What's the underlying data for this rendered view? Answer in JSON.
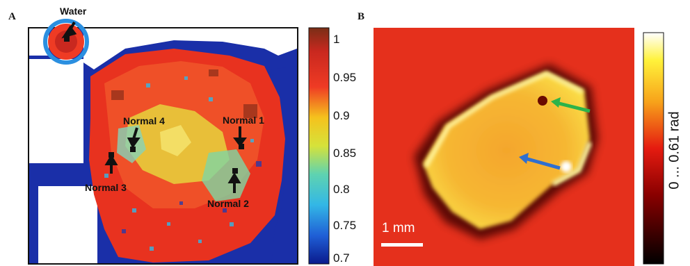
{
  "panel_a": {
    "letter": "A",
    "labels": {
      "water": "Water",
      "normal1": "Normal 1",
      "normal2": "Normal 2",
      "normal3": "Normal 3",
      "normal4": "Normal 4"
    },
    "colorbar": {
      "ticks": [
        "1",
        "0.95",
        "0.9",
        "0.85",
        "0.8",
        "0.75",
        "0.7"
      ],
      "tick_values": [
        1,
        0.95,
        0.9,
        0.85,
        0.8,
        0.75,
        0.7
      ],
      "range": [
        0.7,
        1.0
      ],
      "colormap": "jet"
    }
  },
  "panel_b": {
    "letter": "B",
    "scale_bar": "1 mm",
    "colorbar_label": "0 ... 0.61 rad",
    "colormap": "hot",
    "arrow_colors": {
      "green": "#2db34a",
      "blue": "#2f6fd0"
    }
  }
}
